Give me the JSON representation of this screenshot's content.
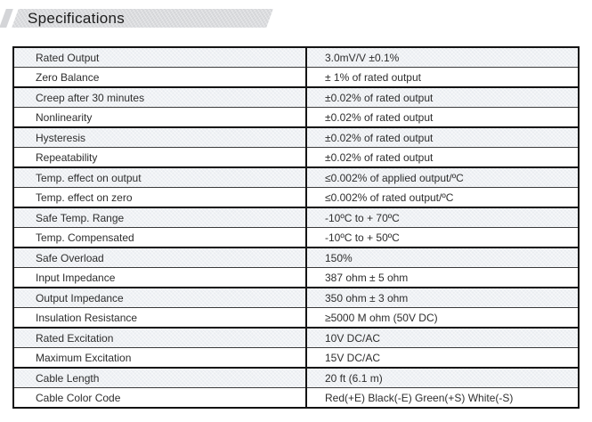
{
  "page": {
    "title": "Specifications"
  },
  "colors": {
    "banner_background": "#d4d5d8",
    "row_shade": "#eaedf1",
    "table_border": "#141414",
    "text": "#2e2e2e"
  },
  "table": {
    "rows": [
      {
        "label": "Rated Output",
        "value": "3.0mV/V ±0.1%"
      },
      {
        "label": "Zero Balance",
        "value": "± 1% of rated output"
      },
      {
        "label": "Creep after 30 minutes",
        "value": "±0.02% of rated output"
      },
      {
        "label": "Nonlinearity",
        "value": "±0.02% of rated output"
      },
      {
        "label": "Hysteresis",
        "value": "±0.02% of rated output"
      },
      {
        "label": "Repeatability",
        "value": "±0.02% of rated output"
      },
      {
        "label": "Temp. effect on output",
        "value": "≤0.002% of applied output/ºC"
      },
      {
        "label": "Temp. effect on zero",
        "value": "≤0.002% of rated output/ºC"
      },
      {
        "label": "Safe Temp. Range",
        "value": "-10ºC to + 70ºC"
      },
      {
        "label": "Temp. Compensated",
        "value": "-10ºC to + 50ºC"
      },
      {
        "label": "Safe Overload",
        "value": "150%"
      },
      {
        "label": "Input Impedance",
        "value": "387 ohm ± 5 ohm"
      },
      {
        "label": "Output Impedance",
        "value": "350 ohm ± 3 ohm"
      },
      {
        "label": "Insulation Resistance",
        "value": "≥5000 M ohm   (50V DC)"
      },
      {
        "label": "Rated Excitation",
        "value": "10V DC/AC"
      },
      {
        "label": "Maximum Excitation",
        "value": "15V DC/AC"
      },
      {
        "label": "Cable Length",
        "value": "20 ft (6.1 m)"
      },
      {
        "label": "Cable Color Code",
        "value": "Red(+E) Black(-E) Green(+S) White(-S)"
      }
    ]
  }
}
